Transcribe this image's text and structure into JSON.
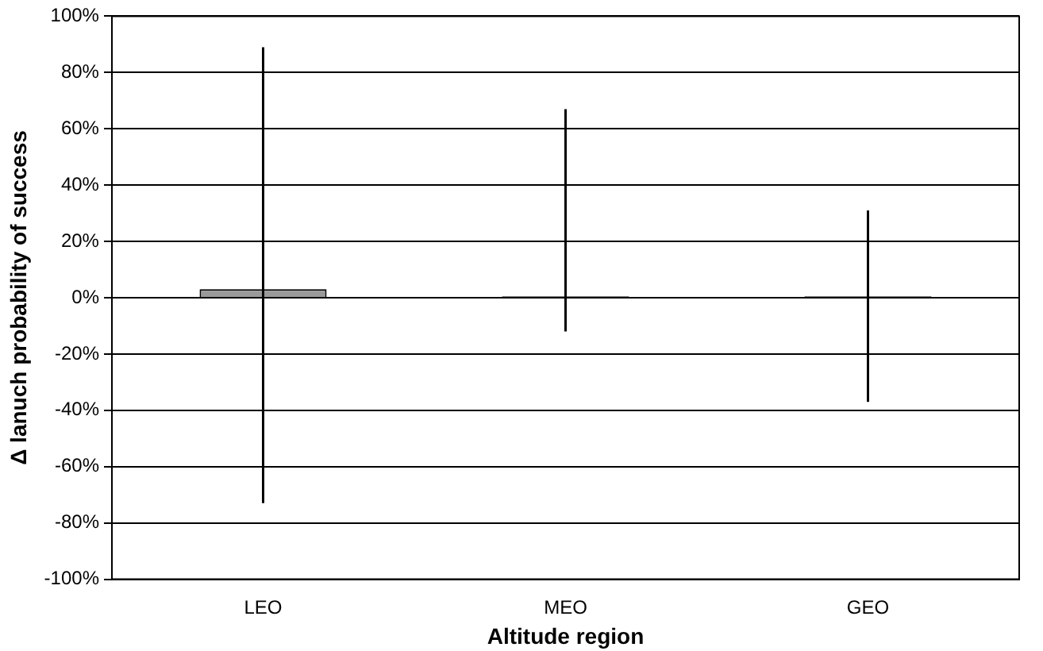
{
  "chart_data": {
    "type": "bar",
    "xlabel": "Altitude region",
    "ylabel": "Δ lanuch probability of success",
    "categories": [
      "LEO",
      "MEO",
      "GEO"
    ],
    "values": [
      3,
      0.5,
      0.5
    ],
    "colors": [
      "#999999",
      "#000000",
      "#000000"
    ],
    "errors": [
      [
        -73,
        89
      ],
      [
        -12,
        67
      ],
      [
        -37,
        31
      ]
    ],
    "ylim": [
      -100,
      100
    ],
    "yticks": [
      {
        "value": -100,
        "label": "-100%"
      },
      {
        "value": -80,
        "label": "-80%"
      },
      {
        "value": -60,
        "label": "-60%"
      },
      {
        "value": -40,
        "label": "-40%"
      },
      {
        "value": -20,
        "label": "-20%"
      },
      {
        "value": 0,
        "label": "0%"
      },
      {
        "value": 20,
        "label": "20%"
      },
      {
        "value": 40,
        "label": "40%"
      },
      {
        "value": 60,
        "label": "60%"
      },
      {
        "value": 80,
        "label": "80%"
      },
      {
        "value": 100,
        "label": "100%"
      }
    ],
    "grid": "y",
    "legend": false
  }
}
